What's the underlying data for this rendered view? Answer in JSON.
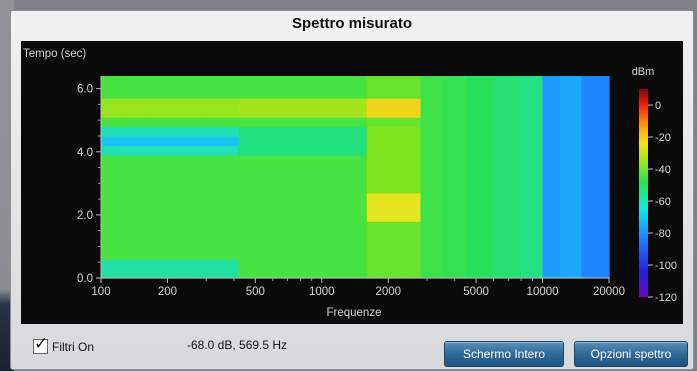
{
  "window": {
    "title": "Spettro misurato"
  },
  "plot": {
    "y_axis_title": "Tempo (sec)",
    "x_axis_title": "Frequenze",
    "y_ticks": [
      "6.0",
      "4.0",
      "2.0",
      "0.0"
    ],
    "x_ticks": [
      "100",
      "200",
      "500",
      "1000",
      "2000",
      "5000",
      "10000",
      "20000"
    ],
    "colorbar_unit": "dBm",
    "colorbar_ticks": [
      "0",
      "-20",
      "-40",
      "-60",
      "-80",
      "-100",
      "-120"
    ]
  },
  "chart_data": {
    "type": "heatmap",
    "title": "Spettro misurato",
    "xlabel": "Frequenze",
    "ylabel": "Tempo (sec)",
    "xscale": "log",
    "xlim": [
      100,
      20000
    ],
    "ylim": [
      0,
      6.4
    ],
    "colorbar": {
      "label": "dBm",
      "range": [
        -120,
        10
      ]
    },
    "x_bins": [
      100,
      130,
      160,
      200,
      300,
      420,
      600,
      800,
      1000,
      1200,
      1400,
      1600,
      1800,
      2000,
      2300,
      2800,
      3500,
      4500,
      6000,
      8000,
      10000,
      12000,
      15000,
      20000
    ],
    "y_bins": [
      0,
      0.3,
      0.6,
      0.9,
      1.2,
      1.5,
      1.8,
      2.1,
      2.4,
      2.7,
      3.0,
      3.3,
      3.6,
      3.9,
      4.2,
      4.5,
      4.8,
      5.1,
      5.4,
      5.7,
      6.0,
      6.4
    ],
    "notes_hotspots": "Peak near 1600-2400 Hz around 5.0-5.6 s and 2.0-2.6 s; cyan horizontal band 100-420 Hz near 4.4 s; blue region above 10000 Hz"
  },
  "controls": {
    "filter_checkbox": {
      "label": "Filtri On",
      "checked": true
    },
    "readout": "-68.0 dB, 569.5 Hz",
    "fullscreen_button": "Schermo Intero",
    "options_button": "Opzioni spettro"
  },
  "colors": {
    "panel_bg": "#e6e7e9",
    "plot_bg": "#0a0a0a",
    "button_blue": "#2f6a97"
  }
}
